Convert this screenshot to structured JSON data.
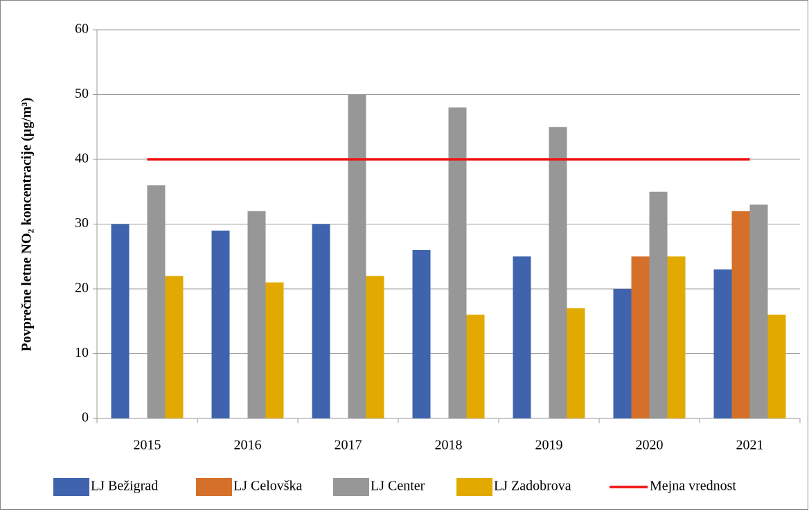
{
  "chart_data": {
    "type": "bar",
    "y_label": "Povprečne letne NO₂ koncentracije (µg/m³)",
    "categories": [
      "2015",
      "2016",
      "2017",
      "2018",
      "2019",
      "2020",
      "2021"
    ],
    "series": [
      {
        "name": "LJ Bežigrad",
        "color": "#3f64ad",
        "values": [
          30,
          29,
          30,
          26,
          25,
          20,
          23
        ]
      },
      {
        "name": "LJ Celovška",
        "color": "#d5702b",
        "values": [
          null,
          null,
          null,
          null,
          null,
          25,
          32
        ]
      },
      {
        "name": "LJ Center",
        "color": "#979797",
        "values": [
          36,
          32,
          50,
          48,
          45,
          35,
          33
        ]
      },
      {
        "name": "LJ Zadobrova",
        "color": "#e2aa00",
        "values": [
          22,
          21,
          22,
          16,
          17,
          25,
          16
        ]
      },
      {
        "name": "Mejna vrednost",
        "color": "#ee1111",
        "type": "line",
        "values": [
          40,
          40,
          40,
          40,
          40,
          40,
          40
        ]
      }
    ],
    "ylim": [
      0,
      60
    ],
    "yticks": [
      0,
      10,
      20,
      30,
      40,
      50,
      60
    ],
    "grid": true,
    "legend": "bottom"
  }
}
